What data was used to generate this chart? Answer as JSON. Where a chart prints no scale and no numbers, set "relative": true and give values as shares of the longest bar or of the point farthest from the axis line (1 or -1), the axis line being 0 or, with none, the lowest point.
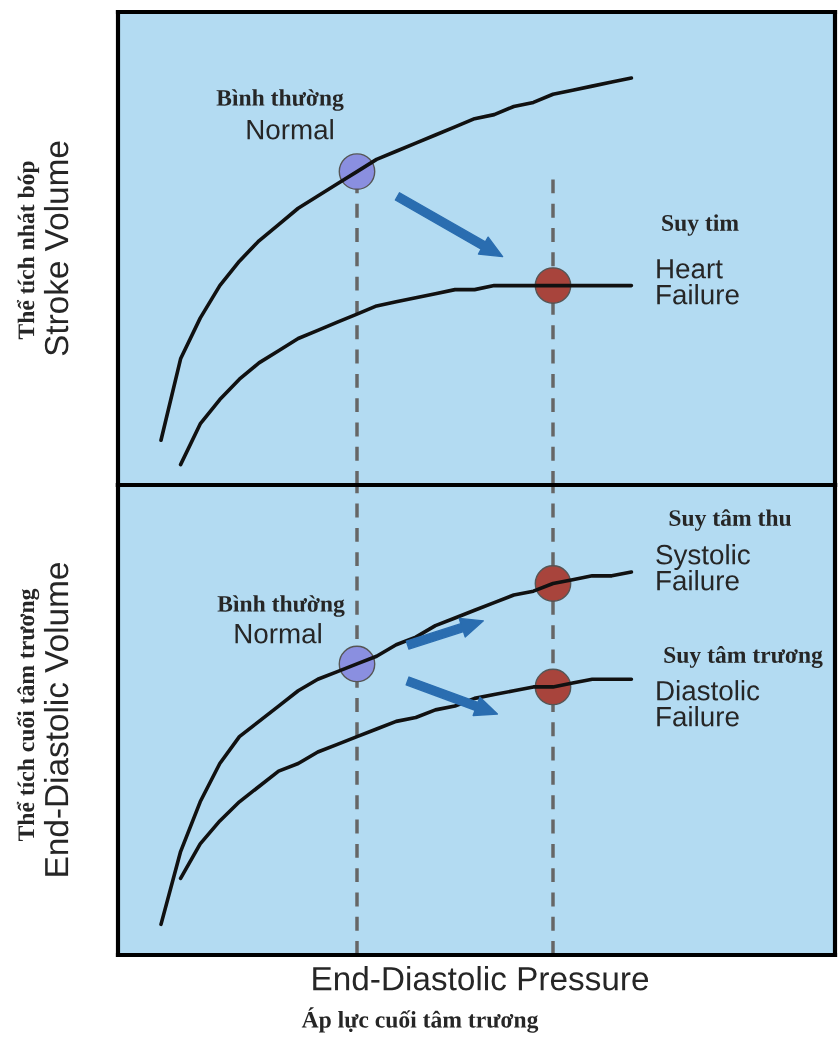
{
  "chart_data": [
    {
      "type": "line",
      "relative": true,
      "ylabel": "Stroke Volume",
      "categories": [
        null,
        null,
        null,
        null,
        null,
        null,
        null,
        null,
        null,
        null,
        null,
        null,
        null,
        null,
        null,
        null,
        null,
        null,
        null,
        null,
        null,
        null,
        null,
        null,
        null
      ],
      "series": [
        {
          "color": "#111111",
          "values": [
            0.11,
            0.31,
            0.41,
            0.49,
            0.55,
            0.6,
            0.64,
            0.68,
            0.71,
            0.74,
            0.77,
            0.8,
            0.82,
            0.84,
            0.86,
            0.88,
            0.9,
            0.91,
            0.93,
            0.94,
            0.96,
            0.97,
            0.98,
            0.99,
            1.0
          ]
        },
        {
          "color": "#111111",
          "values": [
            null,
            0.05,
            0.15,
            0.21,
            0.26,
            0.3,
            0.33,
            0.36,
            0.38,
            0.4,
            0.42,
            0.44,
            0.45,
            0.46,
            0.47,
            0.48,
            0.48,
            0.49,
            0.49,
            0.49,
            0.49,
            0.49,
            0.49,
            0.49,
            0.49
          ]
        }
      ],
      "annotations": [
        "Bình thường",
        "Normal",
        "Suy tim",
        "Heart\nFailure",
        "Thể tích nhát bóp"
      ]
    },
    {
      "type": "line",
      "relative": true,
      "ylabel": "End-Diastolic Volume",
      "xlabel": "End-Diastolic Pressure",
      "categories": [
        null,
        null,
        null,
        null,
        null,
        null,
        null,
        null,
        null,
        null,
        null,
        null,
        null,
        null,
        null,
        null,
        null,
        null,
        null,
        null,
        null,
        null,
        null,
        null,
        null
      ],
      "series": [
        {
          "color": "#111111",
          "values": [
            0.08,
            0.27,
            0.4,
            0.5,
            0.57,
            0.61,
            0.65,
            0.69,
            0.72,
            0.74,
            0.76,
            0.78,
            0.81,
            0.83,
            0.86,
            0.88,
            0.9,
            0.92,
            0.94,
            0.95,
            0.97,
            0.98,
            0.99,
            0.99,
            1.0
          ]
        },
        {
          "color": "#111111",
          "values": [
            null,
            0.2,
            0.29,
            0.35,
            0.4,
            0.44,
            0.48,
            0.5,
            0.53,
            0.55,
            0.57,
            0.59,
            0.61,
            0.62,
            0.64,
            0.65,
            0.67,
            0.68,
            0.69,
            0.7,
            0.7,
            0.71,
            0.72,
            0.72,
            0.72
          ]
        }
      ],
      "annotations": [
        "Suy tâm thu",
        "Systolic\nFailure",
        "Bình thường",
        "Normal",
        "Suy tâm trương",
        "Diastolic\nFailure",
        "Thể tích cuối tâm trương",
        "Áp lực cuối tâm trương"
      ]
    }
  ]
}
